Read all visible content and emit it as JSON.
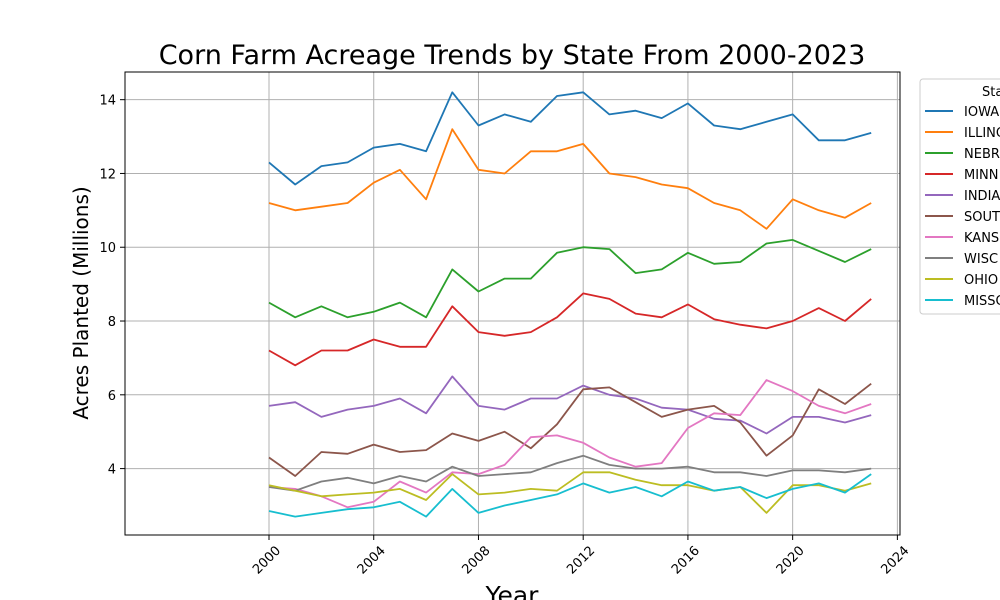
{
  "chart_data": {
    "type": "line",
    "title": "Corn Farm Acreage Trends by State From 2000-2023",
    "xlabel": "Year",
    "ylabel": "Acres Planted (Millions)",
    "xlim": [
      1994.5,
      2024.1
    ],
    "ylim": [
      2.2,
      14.75
    ],
    "xticks": [
      2000,
      2004,
      2008,
      2012,
      2016,
      2020,
      2024
    ],
    "yticks": [
      4,
      6,
      8,
      10,
      12,
      14
    ],
    "grid": true,
    "legend_title": "Sta",
    "legend_position": "right, partially cut off",
    "x": [
      2000,
      2001,
      2002,
      2003,
      2004,
      2005,
      2006,
      2007,
      2008,
      2009,
      2010,
      2011,
      2012,
      2013,
      2014,
      2015,
      2016,
      2017,
      2018,
      2019,
      2020,
      2021,
      2022,
      2023
    ],
    "series": [
      {
        "name": "IOWA",
        "color": "#1f77b4",
        "values": [
          12.3,
          11.7,
          12.2,
          12.3,
          12.7,
          12.8,
          12.6,
          14.2,
          13.3,
          13.6,
          13.4,
          14.1,
          14.2,
          13.6,
          13.7,
          13.5,
          13.9,
          13.3,
          13.2,
          13.4,
          13.6,
          12.9,
          12.9,
          13.1
        ]
      },
      {
        "name": "ILLINO",
        "color": "#ff7f0e",
        "values": [
          11.2,
          11.0,
          11.1,
          11.2,
          11.75,
          12.1,
          11.3,
          13.2,
          12.1,
          12.0,
          12.6,
          12.6,
          12.8,
          12.0,
          11.9,
          11.7,
          11.6,
          11.2,
          11.0,
          10.5,
          11.3,
          11.0,
          10.8,
          11.2
        ]
      },
      {
        "name": "NEBR",
        "color": "#2ca02c",
        "values": [
          8.5,
          8.1,
          8.4,
          8.1,
          8.25,
          8.5,
          8.1,
          9.4,
          8.8,
          9.15,
          9.15,
          9.85,
          10.0,
          9.95,
          9.3,
          9.4,
          9.85,
          9.55,
          9.6,
          10.1,
          10.2,
          9.9,
          9.6,
          9.95
        ]
      },
      {
        "name": "MINN",
        "color": "#d62728",
        "values": [
          7.2,
          6.8,
          7.2,
          7.2,
          7.5,
          7.3,
          7.3,
          8.4,
          7.7,
          7.6,
          7.7,
          8.1,
          8.75,
          8.6,
          8.2,
          8.1,
          8.45,
          8.05,
          7.9,
          7.8,
          8.0,
          8.35,
          8.0,
          8.6
        ]
      },
      {
        "name": "INDIA",
        "color": "#9467bd",
        "values": [
          5.7,
          5.8,
          5.4,
          5.6,
          5.7,
          5.9,
          5.5,
          6.5,
          5.7,
          5.6,
          5.9,
          5.9,
          6.25,
          6.0,
          5.9,
          5.65,
          5.6,
          5.35,
          5.3,
          4.95,
          5.4,
          5.4,
          5.25,
          5.45
        ]
      },
      {
        "name": "SOUT",
        "color": "#8c564b",
        "values": [
          4.3,
          3.8,
          4.45,
          4.4,
          4.65,
          4.45,
          4.5,
          4.95,
          4.75,
          5.0,
          4.55,
          5.2,
          6.15,
          6.2,
          5.8,
          5.4,
          5.6,
          5.7,
          5.25,
          4.35,
          4.9,
          6.15,
          5.75,
          6.3
        ]
      },
      {
        "name": "KANS",
        "color": "#e377c2",
        "values": [
          3.5,
          3.45,
          3.25,
          2.95,
          3.1,
          3.65,
          3.35,
          3.9,
          3.85,
          4.1,
          4.85,
          4.9,
          4.7,
          4.3,
          4.05,
          4.15,
          5.1,
          5.5,
          5.45,
          6.4,
          6.1,
          5.7,
          5.5,
          5.75
        ]
      },
      {
        "name": "WISC",
        "color": "#7f7f7f",
        "values": [
          3.5,
          3.4,
          3.65,
          3.75,
          3.6,
          3.8,
          3.65,
          4.05,
          3.8,
          3.85,
          3.9,
          4.15,
          4.35,
          4.1,
          4.0,
          4.0,
          4.05,
          3.9,
          3.9,
          3.8,
          3.95,
          3.95,
          3.9,
          4.0
        ]
      },
      {
        "name": "OHIO",
        "color": "#bcbd22",
        "values": [
          3.55,
          3.4,
          3.25,
          3.3,
          3.35,
          3.45,
          3.15,
          3.85,
          3.3,
          3.35,
          3.45,
          3.4,
          3.9,
          3.9,
          3.7,
          3.55,
          3.55,
          3.4,
          3.5,
          2.8,
          3.55,
          3.55,
          3.4,
          3.6
        ]
      },
      {
        "name": "MISSO",
        "color": "#17becf",
        "values": [
          2.85,
          2.7,
          2.8,
          2.9,
          2.95,
          3.1,
          2.7,
          3.45,
          2.8,
          3.0,
          3.15,
          3.3,
          3.6,
          3.35,
          3.5,
          3.25,
          3.65,
          3.4,
          3.5,
          3.2,
          3.45,
          3.6,
          3.35,
          3.85
        ]
      }
    ]
  }
}
